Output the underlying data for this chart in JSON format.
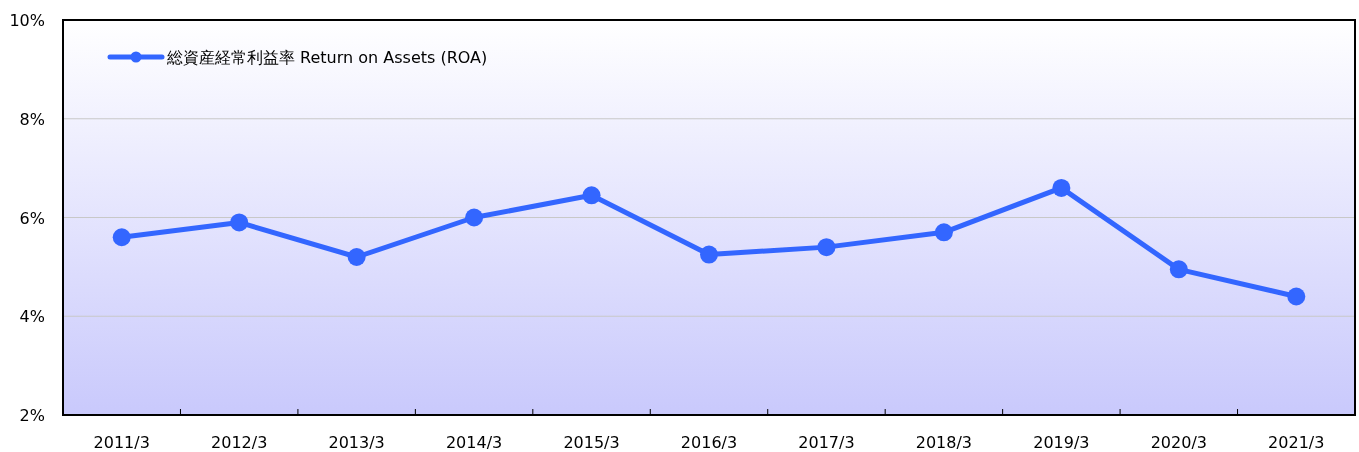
{
  "chart_data": {
    "type": "line",
    "categories": [
      "2011/3",
      "2012/3",
      "2013/3",
      "2014/3",
      "2015/3",
      "2016/3",
      "2017/3",
      "2018/3",
      "2019/3",
      "2020/3",
      "2021/3"
    ],
    "series": [
      {
        "name": "総資産経常利益率 Return on Assets (ROA)",
        "color": "#3366ff",
        "values": [
          5.6,
          5.9,
          5.2,
          6.0,
          6.45,
          5.25,
          5.4,
          5.7,
          6.6,
          4.95,
          4.4
        ]
      }
    ],
    "ylim": [
      2,
      10
    ],
    "yticks": [
      {
        "value": 2,
        "label": "2%"
      },
      {
        "value": 4,
        "label": "4%"
      },
      {
        "value": 6,
        "label": "6%"
      },
      {
        "value": 8,
        "label": "8%"
      },
      {
        "value": 10,
        "label": "10%"
      }
    ],
    "grid": "y",
    "legend": "top left",
    "marker": "circle",
    "line_style": "solid"
  }
}
